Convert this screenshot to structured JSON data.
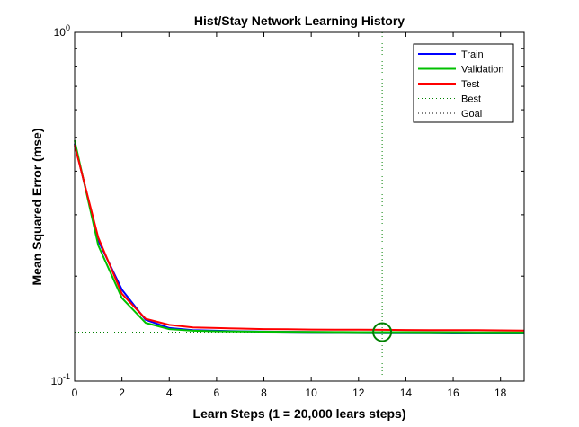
{
  "chart_data": {
    "type": "line",
    "title": "Hist/Stay Network Learning History",
    "xlabel": "Learn Steps (1 = 20,000 lears steps)",
    "ylabel": "Mean Squared Error  (mse)",
    "y_scale": "log",
    "xlim": [
      0,
      19
    ],
    "ylim": [
      0.1,
      1.0
    ],
    "x_ticks": [
      "0",
      "2",
      "4",
      "6",
      "8",
      "10",
      "12",
      "14",
      "16",
      "18"
    ],
    "y_ticks": [
      {
        "base": "10",
        "exp": "0",
        "value": 1.0
      },
      {
        "base": "10",
        "exp": "-1",
        "value": 0.1
      }
    ],
    "x": [
      0,
      1,
      2,
      3,
      4,
      5,
      6,
      7,
      8,
      9,
      10,
      11,
      12,
      13,
      14,
      15,
      16,
      17,
      18,
      19
    ],
    "series": [
      {
        "name": "Train",
        "color": "#0000ff",
        "values": [
          0.48,
          0.253,
          0.183,
          0.15,
          0.142,
          0.14,
          0.1395,
          0.139,
          0.1387,
          0.1385,
          0.1383,
          0.1382,
          0.1381,
          0.138,
          0.138,
          0.1379,
          0.1378,
          0.1377,
          0.1376,
          0.1375
        ]
      },
      {
        "name": "Validation",
        "color": "#00c000",
        "values": [
          0.49,
          0.245,
          0.173,
          0.147,
          0.141,
          0.1395,
          0.139,
          0.1388,
          0.1386,
          0.1385,
          0.1384,
          0.1383,
          0.1382,
          0.1382,
          0.1382,
          0.1381,
          0.1381,
          0.138,
          0.138,
          0.138
        ]
      },
      {
        "name": "Test",
        "color": "#ff0000",
        "values": [
          0.475,
          0.258,
          0.178,
          0.151,
          0.145,
          0.1425,
          0.142,
          0.1415,
          0.141,
          0.1408,
          0.1406,
          0.1405,
          0.1404,
          0.1403,
          0.1402,
          0.1401,
          0.14,
          0.14,
          0.1398,
          0.1397
        ]
      }
    ],
    "best": {
      "label": "Best",
      "x": 13,
      "y": 0.1382,
      "color": "#008000"
    },
    "goal": {
      "label": "Goal",
      "y": 0.1382,
      "color": "#008000"
    },
    "legend_position": "top-right",
    "grid": false
  }
}
